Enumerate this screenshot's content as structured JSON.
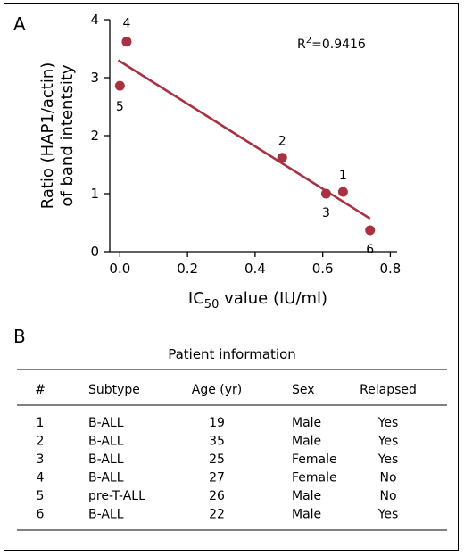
{
  "chart_data": {
    "type": "scatter",
    "panel_label": "A",
    "xlabel_main": "IC",
    "xlabel_sub": "50",
    "xlabel_tail": " value (IU/ml)",
    "ylabel_line1": "Ratio (HAP1/actin)",
    "ylabel_line2": "of band intentsity",
    "xlim": [
      -0.03,
      0.82
    ],
    "ylim": [
      0,
      4
    ],
    "xticks": [
      0.0,
      0.2,
      0.4,
      0.6,
      0.8
    ],
    "xtick_labels": [
      "0.0",
      "0.2",
      "0.4",
      "0.6",
      "0.8"
    ],
    "yticks": [
      0,
      1,
      2,
      3,
      4
    ],
    "ytick_labels": [
      "0",
      "1",
      "2",
      "3",
      "4"
    ],
    "annotation_main": "R",
    "annotation_sup": "2",
    "annotation_tail": "=0.9416",
    "points": [
      {
        "label": "1",
        "x": 0.66,
        "y": 1.03
      },
      {
        "label": "2",
        "x": 0.48,
        "y": 1.62
      },
      {
        "label": "3",
        "x": 0.61,
        "y": 1.0
      },
      {
        "label": "4",
        "x": 0.02,
        "y": 3.62
      },
      {
        "label": "5",
        "x": 0.0,
        "y": 2.86
      },
      {
        "label": "6",
        "x": 0.74,
        "y": 0.37
      }
    ],
    "fit_line": {
      "x": [
        -0.005,
        0.74
      ],
      "y": [
        3.3,
        0.57
      ]
    },
    "point_color": "#a83241",
    "line_color": "#a83241"
  },
  "table": {
    "panel_label": "B",
    "caption": "Patient information",
    "headers": [
      "#",
      "Subtype",
      "Age (yr)",
      "Sex",
      "Relapsed"
    ],
    "rows": [
      [
        "1",
        "B-ALL",
        "19",
        "Male",
        "Yes"
      ],
      [
        "2",
        "B-ALL",
        "35",
        "Male",
        "Yes"
      ],
      [
        "3",
        "B-ALL",
        "25",
        "Female",
        "Yes"
      ],
      [
        "4",
        "B-ALL",
        "27",
        "Female",
        "No"
      ],
      [
        "5",
        "pre-T-ALL",
        "26",
        "Male",
        "No"
      ],
      [
        "6",
        "B-ALL",
        "22",
        "Male",
        "Yes"
      ]
    ]
  }
}
